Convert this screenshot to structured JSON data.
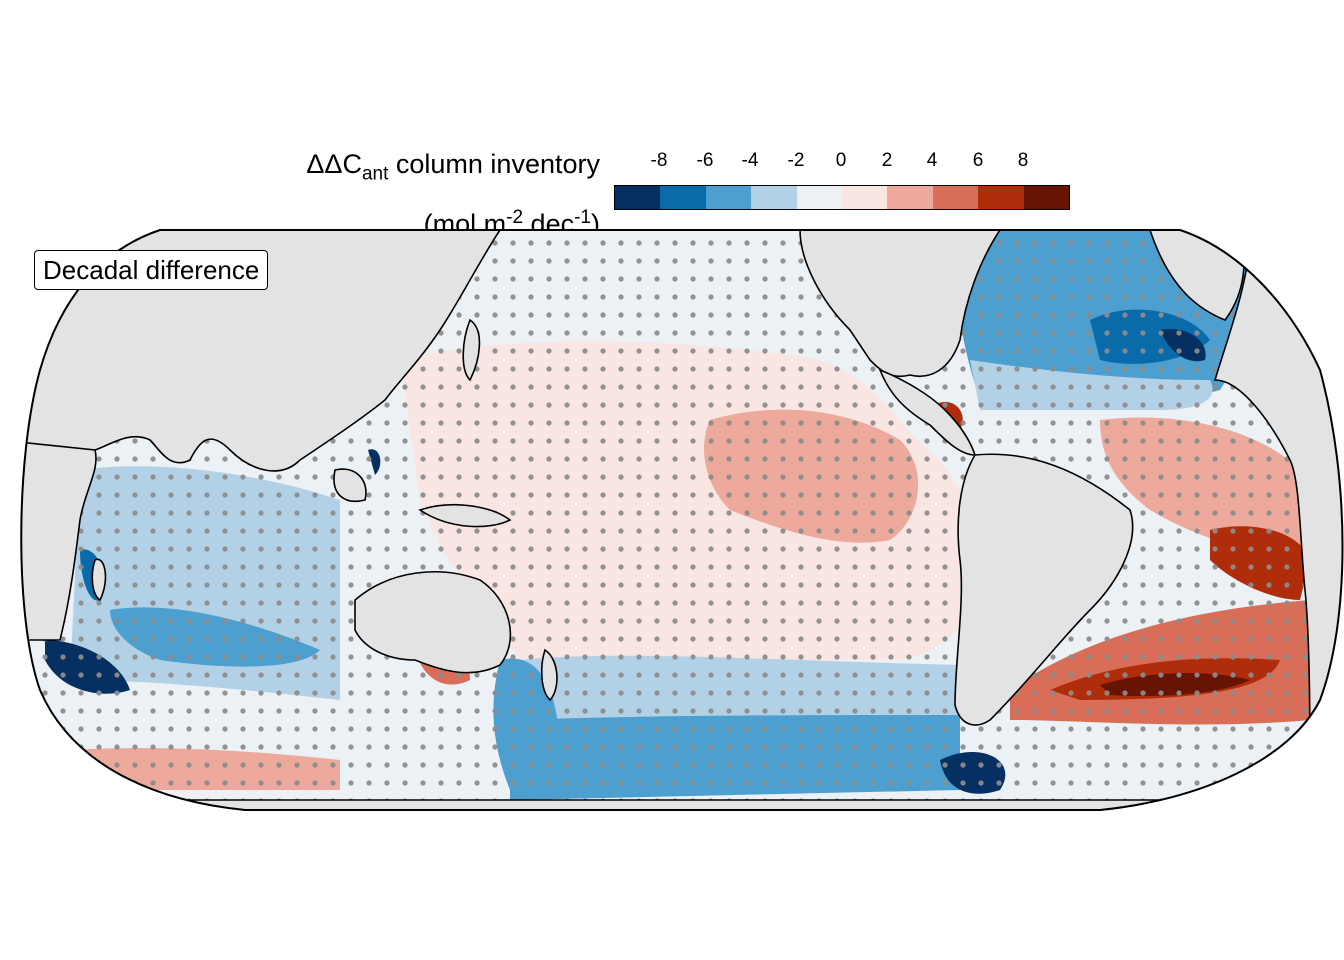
{
  "legend": {
    "title_symbol": "ΔΔC",
    "title_sub": "ant",
    "title_rest": " column inventory",
    "unit_open": "(mol m",
    "unit_exp1": "-2",
    "unit_mid": " dec",
    "unit_exp2": "-1",
    "unit_close": ")",
    "ticks": [
      "-8",
      "-6",
      "-4",
      "-2",
      "0",
      "2",
      "4",
      "6",
      "8"
    ],
    "colors": [
      "#053061",
      "#0a6bab",
      "#4d9fcf",
      "#b2d1e6",
      "#ecf1f6",
      "#f9e5e2",
      "#eca99c",
      "#d86e57",
      "#b02d0c",
      "#681405"
    ]
  },
  "panel_label": "Decadal difference",
  "map": {
    "projection": "Robinson-like, Pacific-centred",
    "land_color": "#e3e3e3",
    "stipple_color": "#8c8c8c",
    "coastline_color": "#000000"
  }
}
